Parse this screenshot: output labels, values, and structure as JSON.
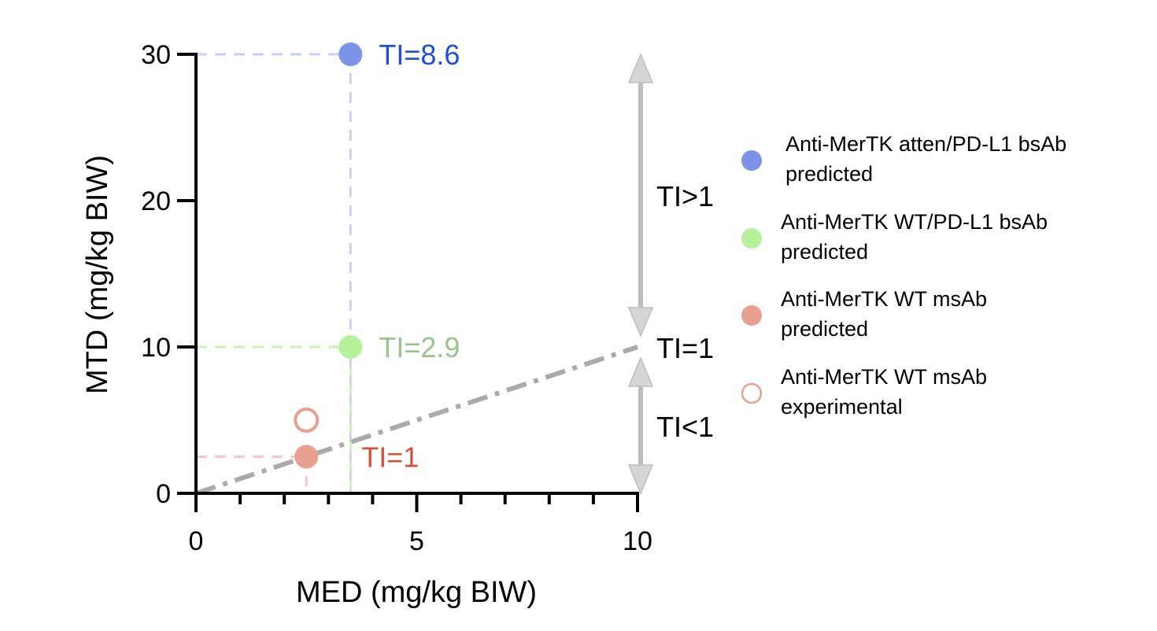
{
  "chart_data": {
    "type": "scatter",
    "xlabel": "MED (mg/kg BIW)",
    "ylabel": "MTD (mg/kg BIW)",
    "xlim": [
      0,
      10
    ],
    "ylim": [
      0,
      30
    ],
    "x_ticks": [
      "0",
      "5",
      "10"
    ],
    "y_ticks": [
      "0",
      "10",
      "20",
      "30"
    ],
    "grid": false,
    "legend_position": "right",
    "series": [
      {
        "name_lines": [
          "Anti-MerTK atten/PD-L1 bsAb",
          "predicted"
        ],
        "x": [
          3.5
        ],
        "y": [
          30
        ],
        "color": "#7b93e8",
        "label_color": "#1f4fd6",
        "marker": "filled",
        "annotation": "TI=8.6",
        "guide_color": "#c7d3f4"
      },
      {
        "name_lines": [
          "Anti-MerTK WT/PD-L1 bsAb",
          "predicted"
        ],
        "x": [
          3.5
        ],
        "y": [
          10
        ],
        "color": "#b6f29b",
        "label_color": "#9ac48c",
        "marker": "filled",
        "annotation": "TI=2.9",
        "guide_color": "#c9f0b6"
      },
      {
        "name_lines": [
          "Anti-MerTK WT msAb",
          "predicted"
        ],
        "x": [
          2.5
        ],
        "y": [
          2.5
        ],
        "color": "#e8a090",
        "label_color": "#d4503a",
        "marker": "filled",
        "annotation": "TI=1",
        "guide_color": "#f5c9c0"
      },
      {
        "name_lines": [
          "Anti-MerTK WT msAb",
          "experimental"
        ],
        "x": [
          2.5
        ],
        "y": [
          5
        ],
        "color": "#e8a090",
        "label_color": "#e8a090",
        "marker": "open",
        "annotation": "",
        "guide_color": ""
      }
    ],
    "reference_line": {
      "label": "TI=1",
      "slope": 1,
      "style": "dash-dot",
      "color": "#aaaaaa"
    },
    "regions": {
      "upper": "TI>1",
      "lower": "TI<1"
    }
  }
}
